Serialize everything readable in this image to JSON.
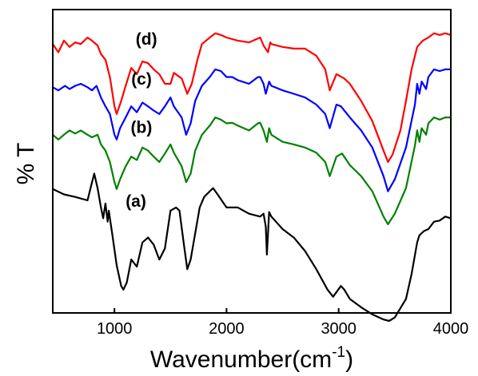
{
  "chart_data": {
    "type": "line",
    "xlabel": "Wavenumber(cm",
    "xlabel_sup": "-1",
    "xlabel_close": ")",
    "ylabel": "% T",
    "xlim": [
      450,
      4000
    ],
    "ylim": [
      0,
      100
    ],
    "xticks": [
      1000,
      2000,
      3000,
      4000
    ],
    "xtick_labels": [
      "1000",
      "2000",
      "3000",
      "4000"
    ],
    "grid": false,
    "series": [
      {
        "name": "(a)",
        "color": "#000000",
        "label_x": 1100,
        "label_y": 36,
        "points": [
          [
            450,
            42.2
          ],
          [
            550,
            40.3
          ],
          [
            650,
            39.4
          ],
          [
            760,
            38.2
          ],
          [
            800,
            44.6
          ],
          [
            820,
            47.6
          ],
          [
            850,
            42.5
          ],
          [
            880,
            35.7
          ],
          [
            900,
            31.9
          ],
          [
            920,
            37.1
          ],
          [
            940,
            30.7
          ],
          [
            950,
            34.6
          ],
          [
            980,
            26.6
          ],
          [
            1020,
            15.3
          ],
          [
            1060,
            8.1
          ],
          [
            1080,
            6.8
          ],
          [
            1110,
            9.3
          ],
          [
            1150,
            17.4
          ],
          [
            1200,
            14.9
          ],
          [
            1250,
            23.4
          ],
          [
            1300,
            25.1
          ],
          [
            1350,
            22.6
          ],
          [
            1400,
            17.4
          ],
          [
            1450,
            21.3
          ],
          [
            1500,
            34.6
          ],
          [
            1550,
            35.7
          ],
          [
            1580,
            34.6
          ],
          [
            1620,
            22.6
          ],
          [
            1650,
            14.0
          ],
          [
            1680,
            17.4
          ],
          [
            1720,
            26.6
          ],
          [
            1760,
            35.7
          ],
          [
            1800,
            39.4
          ],
          [
            1850,
            41.4
          ],
          [
            1880,
            42.5
          ],
          [
            1920,
            40.3
          ],
          [
            2000,
            35.7
          ],
          [
            2100,
            35.7
          ],
          [
            2200,
            33.5
          ],
          [
            2300,
            32.5
          ],
          [
            2330,
            33.5
          ],
          [
            2350,
            29.0
          ],
          [
            2360,
            19.1
          ],
          [
            2380,
            34.1
          ],
          [
            2400,
            32.5
          ],
          [
            2500,
            28.1
          ],
          [
            2600,
            25.1
          ],
          [
            2700,
            20.4
          ],
          [
            2800,
            14.0
          ],
          [
            2900,
            6.8
          ],
          [
            2950,
            4.3
          ],
          [
            3020,
            8.1
          ],
          [
            3050,
            6.8
          ],
          [
            3100,
            3.5
          ],
          [
            3200,
            0.6
          ],
          [
            3300,
            -1.9
          ],
          [
            3400,
            -3.7
          ],
          [
            3450,
            -4.2
          ],
          [
            3500,
            -3.0
          ],
          [
            3600,
            3.5
          ],
          [
            3650,
            12.3
          ],
          [
            3700,
            23.4
          ],
          [
            3720,
            25.9
          ],
          [
            3760,
            27.4
          ],
          [
            3800,
            28.1
          ],
          [
            3850,
            30.7
          ],
          [
            3900,
            31.1
          ],
          [
            3950,
            32.5
          ],
          [
            4000,
            31.9
          ]
        ]
      },
      {
        "name": "(b)",
        "color": "#008000",
        "label_x": 1145,
        "label_y": 62,
        "points": [
          [
            450,
            61.3
          ],
          [
            500,
            59.6
          ],
          [
            550,
            61.3
          ],
          [
            600,
            62.8
          ],
          [
            650,
            61.7
          ],
          [
            700,
            62.8
          ],
          [
            760,
            61.3
          ],
          [
            800,
            60.4
          ],
          [
            850,
            61.3
          ],
          [
            880,
            57.9
          ],
          [
            920,
            55.7
          ],
          [
            960,
            51.7
          ],
          [
            1000,
            44.6
          ],
          [
            1020,
            42.2
          ],
          [
            1050,
            45.6
          ],
          [
            1100,
            50.2
          ],
          [
            1150,
            53.6
          ],
          [
            1200,
            52.4
          ],
          [
            1250,
            56.8
          ],
          [
            1300,
            55.7
          ],
          [
            1350,
            53.6
          ],
          [
            1400,
            51.7
          ],
          [
            1450,
            54.7
          ],
          [
            1500,
            57.9
          ],
          [
            1530,
            55.0
          ],
          [
            1600,
            50.2
          ],
          [
            1640,
            44.6
          ],
          [
            1680,
            47.6
          ],
          [
            1720,
            55.7
          ],
          [
            1780,
            61.3
          ],
          [
            1850,
            64.5
          ],
          [
            1900,
            67.4
          ],
          [
            1950,
            66.6
          ],
          [
            2000,
            65.3
          ],
          [
            2050,
            65.5
          ],
          [
            2100,
            64.5
          ],
          [
            2200,
            62.8
          ],
          [
            2280,
            65.3
          ],
          [
            2300,
            65.5
          ],
          [
            2330,
            62.8
          ],
          [
            2360,
            58.8
          ],
          [
            2380,
            63.6
          ],
          [
            2400,
            61.3
          ],
          [
            2500,
            58.8
          ],
          [
            2600,
            57.9
          ],
          [
            2700,
            56.8
          ],
          [
            2800,
            55.0
          ],
          [
            2880,
            51.7
          ],
          [
            2920,
            46.7
          ],
          [
            2980,
            53.6
          ],
          [
            3030,
            54.7
          ],
          [
            3100,
            50.6
          ],
          [
            3200,
            46.7
          ],
          [
            3300,
            41.4
          ],
          [
            3400,
            32.5
          ],
          [
            3440,
            29.8
          ],
          [
            3500,
            33.5
          ],
          [
            3600,
            42.5
          ],
          [
            3680,
            57.5
          ],
          [
            3700,
            62.8
          ],
          [
            3720,
            58.8
          ],
          [
            3740,
            63.6
          ],
          [
            3780,
            61.3
          ],
          [
            3800,
            65.3
          ],
          [
            3850,
            67.4
          ],
          [
            3900,
            66.6
          ],
          [
            3950,
            67.4
          ],
          [
            4000,
            67.4
          ]
        ]
      },
      {
        "name": "(c)",
        "color": "#0000ff",
        "label_x": 1150,
        "label_y": 79,
        "points": [
          [
            450,
            78.0
          ],
          [
            500,
            76.9
          ],
          [
            560,
            78.5
          ],
          [
            600,
            77.4
          ],
          [
            650,
            78.5
          ],
          [
            700,
            79.2
          ],
          [
            760,
            78.0
          ],
          [
            800,
            76.9
          ],
          [
            840,
            78.5
          ],
          [
            880,
            74.4
          ],
          [
            920,
            71.3
          ],
          [
            960,
            68.6
          ],
          [
            1000,
            61.3
          ],
          [
            1020,
            59.6
          ],
          [
            1050,
            63.6
          ],
          [
            1100,
            67.4
          ],
          [
            1150,
            71.3
          ],
          [
            1200,
            69.2
          ],
          [
            1250,
            72.6
          ],
          [
            1300,
            71.3
          ],
          [
            1350,
            69.8
          ],
          [
            1400,
            68.6
          ],
          [
            1450,
            71.3
          ],
          [
            1500,
            74.4
          ],
          [
            1530,
            71.3
          ],
          [
            1600,
            67.4
          ],
          [
            1640,
            61.3
          ],
          [
            1680,
            65.3
          ],
          [
            1720,
            73.2
          ],
          [
            1780,
            78.5
          ],
          [
            1850,
            81.6
          ],
          [
            1900,
            84.3
          ],
          [
            1950,
            83.7
          ],
          [
            2000,
            81.6
          ],
          [
            2050,
            81.6
          ],
          [
            2100,
            80.5
          ],
          [
            2200,
            79.2
          ],
          [
            2280,
            81.6
          ],
          [
            2300,
            81.6
          ],
          [
            2330,
            79.2
          ],
          [
            2350,
            75.7
          ],
          [
            2380,
            80.0
          ],
          [
            2400,
            78.5
          ],
          [
            2500,
            76.9
          ],
          [
            2600,
            75.7
          ],
          [
            2700,
            74.4
          ],
          [
            2800,
            71.9
          ],
          [
            2880,
            68.6
          ],
          [
            2920,
            63.6
          ],
          [
            2980,
            71.9
          ],
          [
            3020,
            71.3
          ],
          [
            3100,
            67.4
          ],
          [
            3200,
            62.8
          ],
          [
            3300,
            56.8
          ],
          [
            3400,
            46.7
          ],
          [
            3440,
            41.4
          ],
          [
            3500,
            45.6
          ],
          [
            3600,
            56.8
          ],
          [
            3680,
            71.9
          ],
          [
            3700,
            79.2
          ],
          [
            3720,
            75.7
          ],
          [
            3740,
            80.0
          ],
          [
            3780,
            77.4
          ],
          [
            3800,
            81.6
          ],
          [
            3850,
            84.3
          ],
          [
            3900,
            83.7
          ],
          [
            3950,
            84.3
          ],
          [
            4000,
            84.3
          ]
        ]
      },
      {
        "name": "(d)",
        "color": "#ff0000",
        "label_x": 1190,
        "label_y": 93,
        "points": [
          [
            450,
            93.2
          ],
          [
            500,
            90.3
          ],
          [
            550,
            94.4
          ],
          [
            600,
            92.2
          ],
          [
            650,
            93.8
          ],
          [
            700,
            93.2
          ],
          [
            760,
            95.5
          ],
          [
            800,
            94.4
          ],
          [
            850,
            92.7
          ],
          [
            880,
            89.7
          ],
          [
            920,
            87.7
          ],
          [
            960,
            81.6
          ],
          [
            1000,
            71.3
          ],
          [
            1020,
            68.6
          ],
          [
            1060,
            73.2
          ],
          [
            1100,
            78.5
          ],
          [
            1150,
            84.8
          ],
          [
            1200,
            82.6
          ],
          [
            1250,
            87.1
          ],
          [
            1300,
            86.5
          ],
          [
            1350,
            84.3
          ],
          [
            1400,
            82.6
          ],
          [
            1450,
            79.2
          ],
          [
            1500,
            79.2
          ],
          [
            1530,
            83.1
          ],
          [
            1600,
            81.1
          ],
          [
            1650,
            75.7
          ],
          [
            1690,
            79.2
          ],
          [
            1740,
            87.7
          ],
          [
            1780,
            93.2
          ],
          [
            1850,
            95.5
          ],
          [
            1900,
            97.0
          ],
          [
            1950,
            96.4
          ],
          [
            2000,
            95.5
          ],
          [
            2100,
            94.4
          ],
          [
            2200,
            93.8
          ],
          [
            2300,
            95.5
          ],
          [
            2330,
            92.7
          ],
          [
            2370,
            90.3
          ],
          [
            2390,
            93.8
          ],
          [
            2400,
            93.2
          ],
          [
            2500,
            92.2
          ],
          [
            2600,
            91.6
          ],
          [
            2700,
            91.6
          ],
          [
            2800,
            89.1
          ],
          [
            2880,
            84.3
          ],
          [
            2920,
            76.9
          ],
          [
            2980,
            82.6
          ],
          [
            3050,
            81.1
          ],
          [
            3100,
            79.2
          ],
          [
            3200,
            73.2
          ],
          [
            3300,
            66.1
          ],
          [
            3400,
            55.7
          ],
          [
            3440,
            51.7
          ],
          [
            3480,
            54.3
          ],
          [
            3550,
            62.8
          ],
          [
            3600,
            73.2
          ],
          [
            3650,
            84.3
          ],
          [
            3700,
            92.2
          ],
          [
            3750,
            94.4
          ],
          [
            3800,
            95.5
          ],
          [
            3850,
            97.0
          ],
          [
            3900,
            96.4
          ],
          [
            3950,
            97.0
          ],
          [
            4000,
            96.4
          ]
        ]
      }
    ]
  }
}
